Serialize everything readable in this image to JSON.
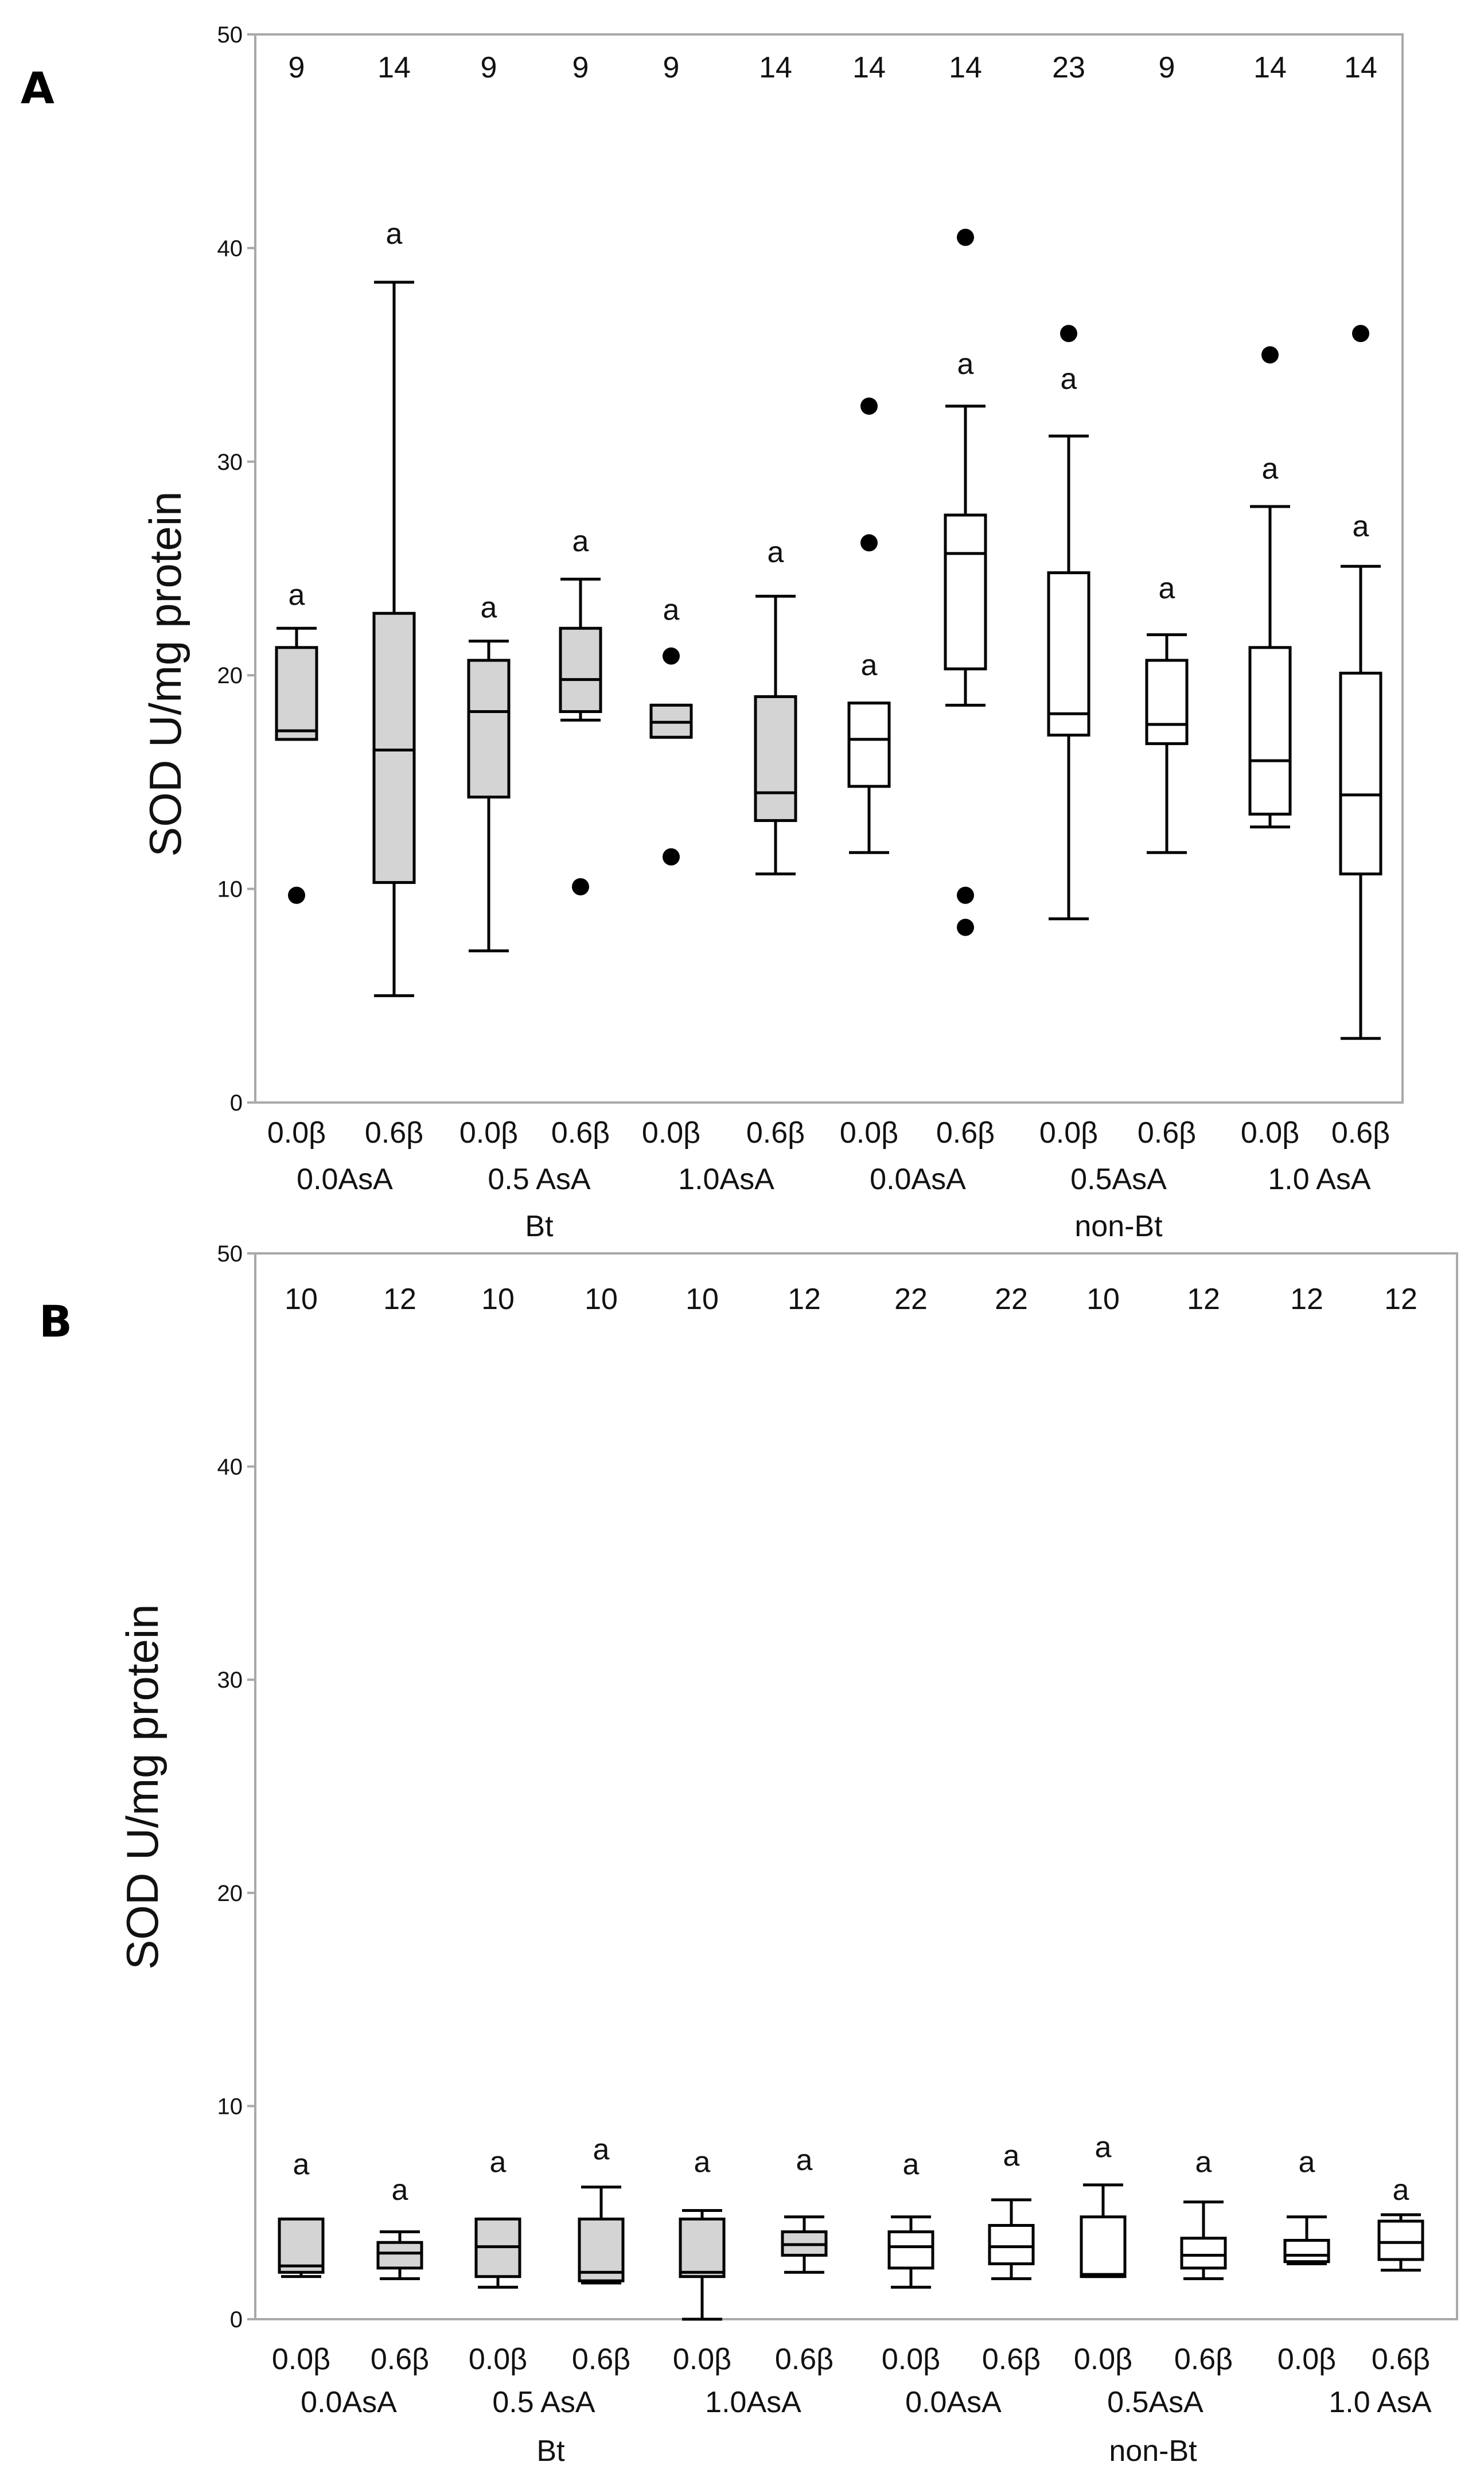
{
  "colors": {
    "bt_fill": "#d4d4d4",
    "nonbt_fill": "#ffffff",
    "frame": "#a9a9a9",
    "ink": "#000000"
  },
  "chart_data": [
    {
      "panel": "A",
      "type": "box",
      "ylabel": "SOD U/mg protein",
      "ylim": [
        0,
        50
      ],
      "yticks": [
        "0",
        "10",
        "20",
        "30",
        "40",
        "50"
      ],
      "categories": [
        "0.0β",
        "0.6β",
        "0.0β",
        "0.6β",
        "0.0β",
        "0.6β",
        "0.0β",
        "0.6β",
        "0.0β",
        "0.6β",
        "0.0β",
        "0.6β"
      ],
      "asa_labels": [
        "0.0AsA",
        "0.5 AsA",
        "1.0AsA",
        "0.0AsA",
        "0.5AsA",
        "1.0 AsA"
      ],
      "group_labels": [
        "Bt",
        "non-Bt"
      ],
      "n": [
        "9",
        "14",
        "9",
        "9",
        "9",
        "14",
        "14",
        "14",
        "23",
        "9",
        "14",
        "14"
      ],
      "letters": [
        "a",
        "a",
        "a",
        "a",
        "a",
        "a",
        "a",
        "a",
        "a",
        "a",
        "a",
        "a"
      ],
      "groups": [
        "Bt",
        "Bt",
        "Bt",
        "Bt",
        "Bt",
        "Bt",
        "non-Bt",
        "non-Bt",
        "non-Bt",
        "non-Bt",
        "non-Bt",
        "non-Bt"
      ],
      "boxes": [
        {
          "min": 17.0,
          "q1": 17.0,
          "median": 17.4,
          "q3": 21.3,
          "max": 22.2,
          "outliers": [
            9.7
          ]
        },
        {
          "min": 5.0,
          "q1": 10.3,
          "median": 16.5,
          "q3": 22.9,
          "max": 38.4,
          "outliers": []
        },
        {
          "min": 7.1,
          "q1": 14.3,
          "median": 18.3,
          "q3": 20.7,
          "max": 21.6,
          "outliers": []
        },
        {
          "min": 17.9,
          "q1": 18.3,
          "median": 19.8,
          "q3": 22.2,
          "max": 24.5,
          "outliers": [
            10.1
          ]
        },
        {
          "min": 17.1,
          "q1": 17.1,
          "median": 17.8,
          "q3": 18.6,
          "max": 18.6,
          "outliers": [
            20.9,
            11.5
          ]
        },
        {
          "min": 10.7,
          "q1": 13.2,
          "median": 14.5,
          "q3": 19.0,
          "max": 23.7,
          "outliers": []
        },
        {
          "min": 11.7,
          "q1": 14.8,
          "median": 17.0,
          "q3": 18.7,
          "max": 18.7,
          "outliers": [
            32.6,
            26.2
          ]
        },
        {
          "min": 18.6,
          "q1": 20.3,
          "median": 25.7,
          "q3": 27.5,
          "max": 32.6,
          "outliers": [
            40.5,
            9.7,
            8.2
          ]
        },
        {
          "min": 8.6,
          "q1": 17.2,
          "median": 18.2,
          "q3": 24.8,
          "max": 31.2,
          "outliers": [
            36.0
          ]
        },
        {
          "min": 11.7,
          "q1": 16.8,
          "median": 17.7,
          "q3": 20.7,
          "max": 21.9,
          "outliers": []
        },
        {
          "min": 12.9,
          "q1": 13.5,
          "median": 16.0,
          "q3": 21.3,
          "max": 27.9,
          "outliers": [
            35.0
          ]
        },
        {
          "min": 3.0,
          "q1": 10.7,
          "median": 14.4,
          "q3": 20.1,
          "max": 25.1,
          "outliers": [
            36.0
          ]
        }
      ],
      "letter_values": [
        23.3,
        40.2,
        22.7,
        25.8,
        22.6,
        25.3,
        20.0,
        34.1,
        33.4,
        23.6,
        29.2,
        26.5
      ]
    },
    {
      "panel": "B",
      "type": "box",
      "ylabel": "SOD U/mg protein",
      "ylim": [
        0,
        50
      ],
      "yticks": [
        "0",
        "10",
        "20",
        "30",
        "40",
        "50"
      ],
      "categories": [
        "0.0β",
        "0.6β",
        "0.0β",
        "0.6β",
        "0.0β",
        "0.6β",
        "0.0β",
        "0.6β",
        "0.0β",
        "0.6β",
        "0.0β",
        "0.6β"
      ],
      "asa_labels": [
        "0.0AsA",
        "0.5 AsA",
        "1.0AsA",
        "0.0AsA",
        "0.5AsA",
        "1.0 AsA"
      ],
      "group_labels": [
        "Bt",
        "non-Bt"
      ],
      "n": [
        "10",
        "12",
        "10",
        "10",
        "10",
        "12",
        "22",
        "22",
        "10",
        "12",
        "12",
        "12"
      ],
      "letters": [
        "a",
        "a",
        "a",
        "a",
        "a",
        "a",
        "a",
        "a",
        "a",
        "a",
        "a",
        "a"
      ],
      "groups": [
        "Bt",
        "Bt",
        "Bt",
        "Bt",
        "Bt",
        "Bt",
        "non-Bt",
        "non-Bt",
        "non-Bt",
        "non-Bt",
        "non-Bt",
        "non-Bt"
      ],
      "boxes": [
        {
          "min": 2.0,
          "q1": 2.2,
          "median": 2.5,
          "q3": 4.7,
          "max": 4.7,
          "outliers": []
        },
        {
          "min": 1.9,
          "q1": 2.4,
          "median": 3.1,
          "q3": 3.6,
          "max": 4.1,
          "outliers": []
        },
        {
          "min": 1.5,
          "q1": 2.0,
          "median": 3.4,
          "q3": 4.7,
          "max": 4.7,
          "outliers": []
        },
        {
          "min": 1.7,
          "q1": 1.8,
          "median": 2.2,
          "q3": 4.7,
          "max": 6.2,
          "outliers": []
        },
        {
          "min": 0.0,
          "q1": 2.0,
          "median": 2.2,
          "q3": 4.7,
          "max": 5.1,
          "outliers": []
        },
        {
          "min": 2.2,
          "q1": 3.0,
          "median": 3.5,
          "q3": 4.1,
          "max": 4.8,
          "outliers": []
        },
        {
          "min": 1.5,
          "q1": 2.4,
          "median": 3.4,
          "q3": 4.1,
          "max": 4.8,
          "outliers": []
        },
        {
          "min": 1.9,
          "q1": 2.6,
          "median": 3.4,
          "q3": 4.4,
          "max": 5.6,
          "outliers": []
        },
        {
          "min": 2.0,
          "q1": 2.0,
          "median": 2.1,
          "q3": 4.8,
          "max": 6.3,
          "outliers": []
        },
        {
          "min": 1.9,
          "q1": 2.4,
          "median": 3.0,
          "q3": 3.8,
          "max": 5.5,
          "outliers": []
        },
        {
          "min": 2.6,
          "q1": 2.7,
          "median": 3.0,
          "q3": 3.7,
          "max": 4.8,
          "outliers": []
        },
        {
          "min": 2.3,
          "q1": 2.8,
          "median": 3.6,
          "q3": 4.6,
          "max": 4.9,
          "outliers": []
        }
      ],
      "letter_values": [
        6.8,
        5.6,
        6.9,
        7.5,
        6.9,
        7.0,
        6.8,
        7.2,
        7.6,
        6.9,
        6.9,
        5.6
      ]
    }
  ],
  "panel_labels": [
    "A",
    "B"
  ]
}
